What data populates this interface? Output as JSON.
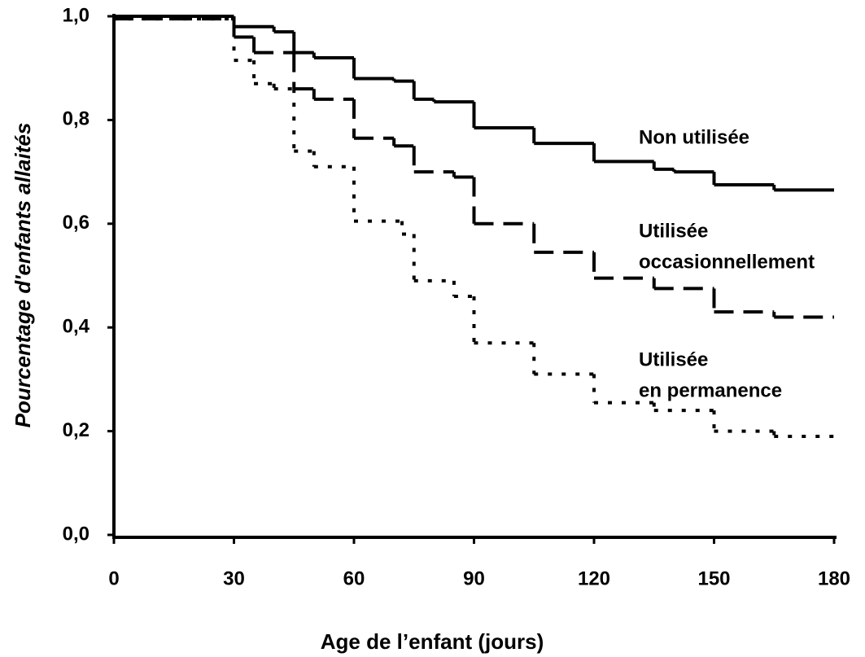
{
  "chart_data": {
    "type": "step",
    "x_label": "Age de l’enfant (jours)",
    "y_label": "Pourcentage d'enfants allaités",
    "xlim": [
      0,
      180
    ],
    "ylim": [
      0,
      1
    ],
    "xticks": [
      0,
      30,
      60,
      90,
      120,
      150,
      180
    ],
    "yticks": [
      {
        "value": 0,
        "label": "0,0"
      },
      {
        "value": 0.2,
        "label": "0,2"
      },
      {
        "value": 0.4,
        "label": "0,4"
      },
      {
        "value": 0.6,
        "label": "0,6"
      },
      {
        "value": 0.8,
        "label": "0,8"
      },
      {
        "value": 1,
        "label": "1,0"
      }
    ],
    "series": [
      {
        "name": [
          "Non utilisée"
        ],
        "color": "#000000",
        "style": "solid",
        "x": [
          0,
          30,
          40,
          45,
          50,
          60,
          70,
          75,
          80,
          90,
          105,
          120,
          135,
          140,
          150,
          165
        ],
        "values": [
          1,
          0.98,
          0.97,
          0.93,
          0.92,
          0.88,
          0.875,
          0.84,
          0.835,
          0.785,
          0.755,
          0.72,
          0.705,
          0.7,
          0.675,
          0.665
        ]
      },
      {
        "name": [
          "Utilisée",
          "occasionnellement"
        ],
        "color": "#000000",
        "style": "dashed",
        "x": [
          0,
          30,
          35,
          45,
          50,
          60,
          70,
          75,
          85,
          90,
          105,
          120,
          135,
          150,
          165
        ],
        "values": [
          0.995,
          0.96,
          0.93,
          0.86,
          0.84,
          0.765,
          0.75,
          0.7,
          0.69,
          0.6,
          0.545,
          0.495,
          0.475,
          0.43,
          0.42
        ]
      },
      {
        "name": [
          "Utilisée",
          "en permanence"
        ],
        "color": "#000000",
        "style": "dotted",
        "x": [
          0,
          30,
          35,
          40,
          45,
          50,
          60,
          72,
          75,
          85,
          90,
          105,
          120,
          135,
          150,
          165
        ],
        "values": [
          0.995,
          0.915,
          0.87,
          0.86,
          0.74,
          0.71,
          0.605,
          0.58,
          0.49,
          0.46,
          0.37,
          0.31,
          0.255,
          0.24,
          0.2,
          0.19
        ]
      }
    ]
  }
}
